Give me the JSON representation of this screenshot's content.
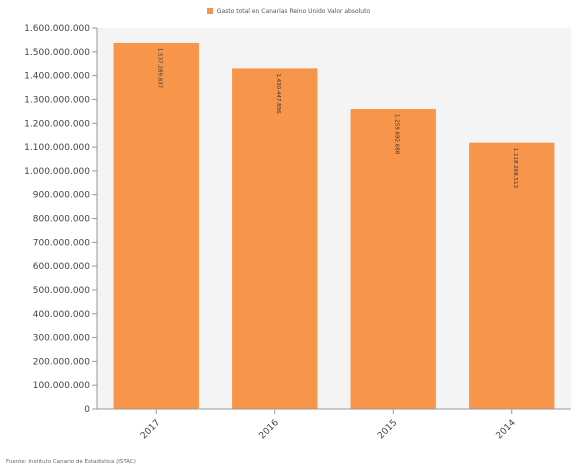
{
  "chart_data": {
    "type": "bar",
    "categories": [
      "2017",
      "2016",
      "2015",
      "2014"
    ],
    "series": [
      {
        "name": "Gasto total en Canarias Reino Unido Valor absoluto",
        "values": [
          1537289837,
          1430447896,
          1259692688,
          1118268513
        ],
        "value_labels": [
          "1.537.289.837",
          "1.430.447.896",
          "1.259.692.688",
          "1.118.268.513"
        ],
        "color": "#f7954a"
      }
    ],
    "y_ticks": [
      0,
      100000000,
      200000000,
      300000000,
      400000000,
      500000000,
      600000000,
      700000000,
      800000000,
      900000000,
      1000000000,
      1100000000,
      1200000000,
      1300000000,
      1400000000,
      1500000000,
      1600000000
    ],
    "y_tick_labels": [
      "0",
      "100.000.000",
      "200.000.000",
      "300.000.000",
      "400.000.000",
      "500.000.000",
      "600.000.000",
      "700.000.000",
      "800.000.000",
      "900.000.000",
      "1.000.000.000",
      "1.100.000.000",
      "1.200.000.000",
      "1.300.000.000",
      "1.400.000.000",
      "1.500.000.000",
      "1.600.000.000"
    ],
    "ylim": [
      0,
      1600000000
    ],
    "legend_position": "top-center",
    "grid": false,
    "source": "Fuente: Instituto Canario de Estadística (ISTAC)"
  }
}
